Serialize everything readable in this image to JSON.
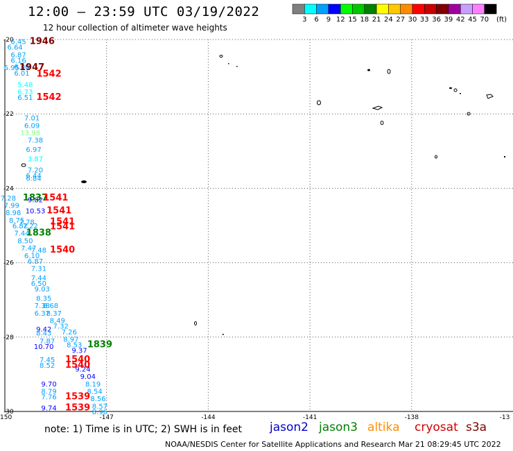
{
  "header": {
    "title": "12:00 – 23:59 UTC 03/19/2022",
    "subtitle": "12 hour collection of altimeter wave heights"
  },
  "legend": {
    "unit": "(ft)",
    "items": [
      {
        "label": "3",
        "color": "#7f7f7f"
      },
      {
        "label": "6",
        "color": "#00ffff"
      },
      {
        "label": "9",
        "color": "#00a0ff"
      },
      {
        "label": "12",
        "color": "#0000ff"
      },
      {
        "label": "15",
        "color": "#00ff00"
      },
      {
        "label": "18",
        "color": "#00c800"
      },
      {
        "label": "21",
        "color": "#008000"
      },
      {
        "label": "24",
        "color": "#ffff00"
      },
      {
        "label": "27",
        "color": "#ffc800"
      },
      {
        "label": "30",
        "color": "#ff8c00"
      },
      {
        "label": "33",
        "color": "#ff0000"
      },
      {
        "label": "36",
        "color": "#c80000"
      },
      {
        "label": "39",
        "color": "#800000"
      },
      {
        "label": "42",
        "color": "#a000a0"
      },
      {
        "label": "45",
        "color": "#c8a0ff"
      },
      {
        "label": "70",
        "color": "#ff80ff"
      },
      {
        "label": "",
        "color": "#000000"
      }
    ]
  },
  "axes": {
    "lon_labels": [
      "-150",
      "-147",
      "-144",
      "-141",
      "-138",
      "-13"
    ],
    "lat_labels": [
      "-20",
      "-22",
      "-24",
      "-26",
      "-28",
      "-30"
    ]
  },
  "observations": [
    {
      "text": "6.45",
      "color": "#00a0ff",
      "lon": -149.6,
      "lat": -20.05
    },
    {
      "text": "1946",
      "color": "#800000",
      "lon": -148.9,
      "lat": -20.05
    },
    {
      "text": "6.64",
      "color": "#00a0ff",
      "lon": -149.7,
      "lat": -20.2
    },
    {
      "text": "6.87",
      "color": "#00a0ff",
      "lon": -149.6,
      "lat": -20.4
    },
    {
      "text": "6.16",
      "color": "#00a0ff",
      "lon": -149.6,
      "lat": -20.55
    },
    {
      "text": "6.95",
      "color": "#00a0ff",
      "lon": -149.8,
      "lat": -20.75
    },
    {
      "text": "6.00",
      "color": "#00a0ff",
      "lon": -149.5,
      "lat": -20.72
    },
    {
      "text": "1947",
      "color": "#800000",
      "lon": -149.2,
      "lat": -20.75
    },
    {
      "text": "6.01",
      "color": "#00a0ff",
      "lon": -149.5,
      "lat": -20.9
    },
    {
      "text": "1542",
      "color": "#ff0000",
      "lon": -148.7,
      "lat": -20.92
    },
    {
      "text": "5.48",
      "color": "#00ffff",
      "lon": -149.4,
      "lat": -21.2
    },
    {
      "text": "6.73",
      "color": "#00ffff",
      "lon": -149.4,
      "lat": -21.4
    },
    {
      "text": "6.51",
      "color": "#00a0ff",
      "lon": -149.4,
      "lat": -21.55
    },
    {
      "text": "1542",
      "color": "#ff0000",
      "lon": -148.7,
      "lat": -21.55
    },
    {
      "text": "7.01",
      "color": "#00a0ff",
      "lon": -149.2,
      "lat": -22.1
    },
    {
      "text": "6.09",
      "color": "#00a0ff",
      "lon": -149.2,
      "lat": -22.3
    },
    {
      "text": "13.98",
      "color": "#80ff80",
      "lon": -149.25,
      "lat": -22.5
    },
    {
      "text": "7.38",
      "color": "#00a0ff",
      "lon": -149.1,
      "lat": -22.7
    },
    {
      "text": "6.97",
      "color": "#00a0ff",
      "lon": -149.15,
      "lat": -22.95
    },
    {
      "text": "3.87",
      "color": "#00ffff",
      "lon": -149.1,
      "lat": -23.2
    },
    {
      "text": "7.20",
      "color": "#00a0ff",
      "lon": -149.1,
      "lat": -23.5
    },
    {
      "text": "6.44",
      "color": "#00a0ff",
      "lon": -149.15,
      "lat": -23.65
    },
    {
      "text": "6.84",
      "color": "#00a0ff",
      "lon": -149.15,
      "lat": -23.72
    },
    {
      "text": "7.28",
      "color": "#00a0ff",
      "lon": -149.9,
      "lat": -24.25
    },
    {
      "text": "1837",
      "color": "#008000",
      "lon": -149.1,
      "lat": -24.25
    },
    {
      "text": "9.82",
      "color": "#0000ff",
      "lon": -149.1,
      "lat": -24.3
    },
    {
      "text": "1541",
      "color": "#ff0000",
      "lon": -148.5,
      "lat": -24.25
    },
    {
      "text": "7.99",
      "color": "#00a0ff",
      "lon": -149.8,
      "lat": -24.45
    },
    {
      "text": "10.53",
      "color": "#0000ff",
      "lon": -149.1,
      "lat": -24.6
    },
    {
      "text": "1541",
      "color": "#ff0000",
      "lon": -148.4,
      "lat": -24.6
    },
    {
      "text": "8.98",
      "color": "#00a0ff",
      "lon": -149.75,
      "lat": -24.65
    },
    {
      "text": "8.75",
      "color": "#00a0ff",
      "lon": -149.65,
      "lat": -24.85
    },
    {
      "text": "7.78",
      "color": "#00a0ff",
      "lon": -149.35,
      "lat": -24.9
    },
    {
      "text": "1541",
      "color": "#ff0000",
      "lon": -148.3,
      "lat": -24.9
    },
    {
      "text": "6.82",
      "color": "#00a0ff",
      "lon": -149.55,
      "lat": -25.0
    },
    {
      "text": "7.22",
      "color": "#00a0ff",
      "lon": -149.25,
      "lat": -25.0
    },
    {
      "text": "1541",
      "color": "#ff0000",
      "lon": -148.3,
      "lat": -25.03
    },
    {
      "text": "7.44",
      "color": "#00a0ff",
      "lon": -149.5,
      "lat": -25.2
    },
    {
      "text": "1838",
      "color": "#008000",
      "lon": -149.0,
      "lat": -25.2
    },
    {
      "text": "8.50",
      "color": "#00a0ff",
      "lon": -149.4,
      "lat": -25.4
    },
    {
      "text": "7.47",
      "color": "#00a0ff",
      "lon": -149.3,
      "lat": -25.6
    },
    {
      "text": "7.48",
      "color": "#00a0ff",
      "lon": -149.0,
      "lat": -25.65
    },
    {
      "text": "1540",
      "color": "#ff0000",
      "lon": -148.3,
      "lat": -25.65
    },
    {
      "text": "6.10",
      "color": "#00a0ff",
      "lon": -149.2,
      "lat": -25.8
    },
    {
      "text": "6.87",
      "color": "#00a0ff",
      "lon": -149.1,
      "lat": -25.95
    },
    {
      "text": "7.31",
      "color": "#00a0ff",
      "lon": -149.0,
      "lat": -26.15
    },
    {
      "text": "7.44",
      "color": "#00a0ff",
      "lon": -149.0,
      "lat": -26.4
    },
    {
      "text": "6.50",
      "color": "#00a0ff",
      "lon": -149.0,
      "lat": -26.55
    },
    {
      "text": "9.03",
      "color": "#00a0ff",
      "lon": -148.9,
      "lat": -26.7
    },
    {
      "text": "8.35",
      "color": "#00a0ff",
      "lon": -148.85,
      "lat": -26.95
    },
    {
      "text": "7.38",
      "color": "#00a0ff",
      "lon": -148.9,
      "lat": -27.15
    },
    {
      "text": "8.68",
      "color": "#00a0ff",
      "lon": -148.65,
      "lat": -27.15
    },
    {
      "text": "6.37",
      "color": "#00a0ff",
      "lon": -148.9,
      "lat": -27.35
    },
    {
      "text": "8.37",
      "color": "#00a0ff",
      "lon": -148.55,
      "lat": -27.35
    },
    {
      "text": "8.49",
      "color": "#00a0ff",
      "lon": -148.45,
      "lat": -27.55
    },
    {
      "text": "7.32",
      "color": "#00a0ff",
      "lon": -148.35,
      "lat": -27.7
    },
    {
      "text": "9.42",
      "color": "#0000ff",
      "lon": -148.85,
      "lat": -27.78
    },
    {
      "text": "7.26",
      "color": "#00a0ff",
      "lon": -148.1,
      "lat": -27.85
    },
    {
      "text": "8.43",
      "color": "#00a0ff",
      "lon": -148.85,
      "lat": -27.88
    },
    {
      "text": "8.97",
      "color": "#00a0ff",
      "lon": -148.05,
      "lat": -28.05
    },
    {
      "text": "7.87",
      "color": "#00a0ff",
      "lon": -148.75,
      "lat": -28.1
    },
    {
      "text": "8.53",
      "color": "#00a0ff",
      "lon": -147.95,
      "lat": -28.2
    },
    {
      "text": "10.70",
      "color": "#0000ff",
      "lon": -148.85,
      "lat": -28.25
    },
    {
      "text": "1839",
      "color": "#008000",
      "lon": -147.2,
      "lat": -28.2
    },
    {
      "text": "9.37",
      "color": "#0000ff",
      "lon": -147.8,
      "lat": -28.35
    },
    {
      "text": "7.45",
      "color": "#00a0ff",
      "lon": -148.75,
      "lat": -28.6
    },
    {
      "text": "1540",
      "color": "#ff0000",
      "lon": -147.85,
      "lat": -28.6
    },
    {
      "text": "8.52",
      "color": "#00a0ff",
      "lon": -148.75,
      "lat": -28.75
    },
    {
      "text": "1540",
      "color": "#ff0000",
      "lon": -147.85,
      "lat": -28.75
    },
    {
      "text": "9.24",
      "color": "#0000ff",
      "lon": -147.7,
      "lat": -28.85
    },
    {
      "text": "9.04",
      "color": "#0000ff",
      "lon": -147.55,
      "lat": -29.05
    },
    {
      "text": "9.70",
      "color": "#0000ff",
      "lon": -148.7,
      "lat": -29.25
    },
    {
      "text": "8.19",
      "color": "#00a0ff",
      "lon": -147.4,
      "lat": -29.25
    },
    {
      "text": "8.79",
      "color": "#00a0ff",
      "lon": -148.7,
      "lat": -29.45
    },
    {
      "text": "8.54",
      "color": "#00a0ff",
      "lon": -147.35,
      "lat": -29.45
    },
    {
      "text": "7.76",
      "color": "#00a0ff",
      "lon": -148.7,
      "lat": -29.6
    },
    {
      "text": "1539",
      "color": "#ff0000",
      "lon": -147.85,
      "lat": -29.6
    },
    {
      "text": "8.56",
      "color": "#00a0ff",
      "lon": -147.25,
      "lat": -29.65
    },
    {
      "text": "9.74",
      "color": "#0000ff",
      "lon": -148.7,
      "lat": -29.9
    },
    {
      "text": "1539",
      "color": "#ff0000",
      "lon": -147.85,
      "lat": -29.9
    },
    {
      "text": "8.57",
      "color": "#00a0ff",
      "lon": -147.2,
      "lat": -29.85
    },
    {
      "text": "8.96",
      "color": "#00a0ff",
      "lon": -147.2,
      "lat": -30.0
    }
  ],
  "footer": {
    "note": "note:  1) Time is in UTC;  2) SWH is in feet",
    "satellites": [
      {
        "name": "jason2",
        "color": "#0000cc"
      },
      {
        "name": "jason3",
        "color": "#008000"
      },
      {
        "name": "altika",
        "color": "#ff8c00"
      },
      {
        "name": "cryosat",
        "color": "#cc0000"
      },
      {
        "name": "s3a",
        "color": "#800000"
      }
    ],
    "credit": "NOAA/NESDIS Center for Satellite Applications and Research    Mar 21 08:29:45 UTC 2022"
  }
}
